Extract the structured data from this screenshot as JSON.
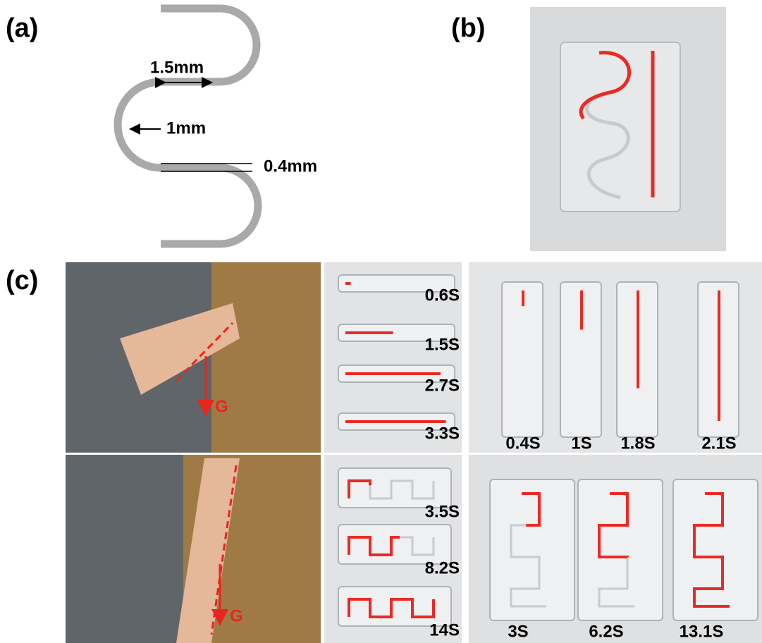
{
  "panels": {
    "a": {
      "label": "(a)",
      "dimensions": [
        "1.5mm",
        "1mm",
        "0.4mm"
      ]
    },
    "b": {
      "label": "(b)"
    },
    "c": {
      "label": "(c)",
      "arrow_labels": [
        "G",
        "G"
      ],
      "straight_horizontal_times": [
        "0.6S",
        "1.5S",
        "2.7S",
        "3.3S"
      ],
      "straight_vertical_times": [
        "0.4S",
        "1S",
        "1.8S",
        "2.1S"
      ],
      "serpentine_horizontal_times": [
        "3.5S",
        "8.2S",
        "14S"
      ],
      "serpentine_vertical_times": [
        "3S",
        "6.2S",
        "13.1S"
      ]
    }
  }
}
